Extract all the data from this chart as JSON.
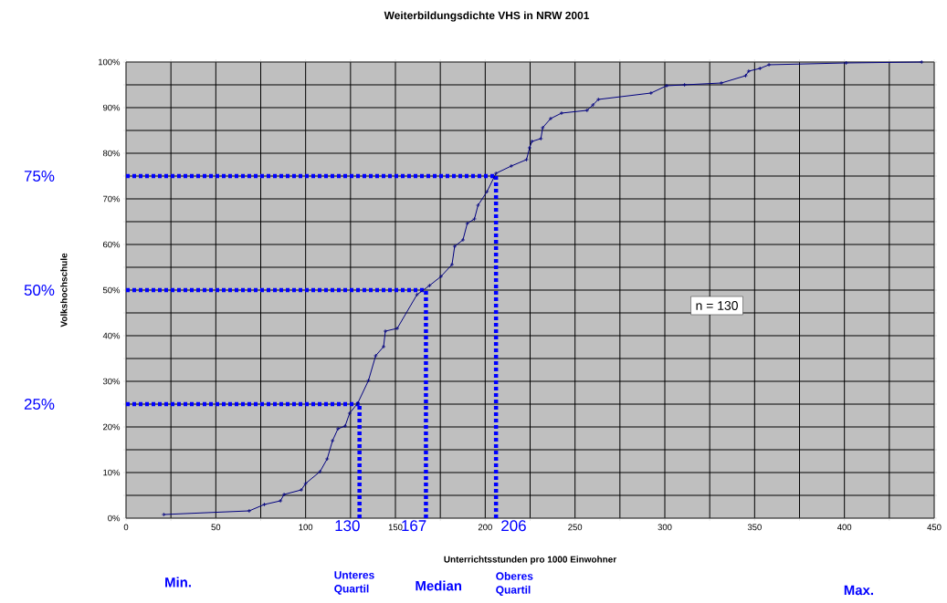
{
  "chart_data": {
    "type": "line",
    "title": "Weiterbildungsdichte VHS in NRW 2001",
    "xlabel": "Unterrichtsstunden pro 1000 Einwohner",
    "ylabel": "Volkshochschule",
    "x": [
      21,
      68.6,
      77,
      86,
      88,
      97.6,
      100,
      108,
      112,
      115,
      118,
      122,
      124.5,
      129,
      135,
      139,
      143.4,
      144.4,
      151,
      162,
      169,
      175.4,
      181.5,
      183,
      187.6,
      190,
      194,
      196,
      201,
      206,
      214.5,
      223,
      224.7,
      226,
      231,
      232,
      236.4,
      242.5,
      256.7,
      260,
      263,
      292.3,
      301,
      311,
      331.5,
      345,
      346.7,
      353,
      358,
      401,
      443
    ],
    "series": [
      {
        "color": "#000080",
        "values": [
          0.8,
          1.6,
          3,
          3.8,
          5.2,
          6.2,
          7.6,
          10.2,
          13,
          17,
          19.6,
          20.2,
          23,
          25.2,
          30.2,
          35.6,
          37.6,
          41,
          41.6,
          49,
          51,
          53,
          55.6,
          59.6,
          61,
          64.6,
          65.6,
          68.6,
          71.6,
          75.6,
          77.2,
          78.6,
          81.2,
          82.6,
          83.2,
          85.6,
          87.6,
          88.8,
          89.4,
          90.6,
          91.8,
          93.2,
          94.8,
          95,
          95.4,
          97,
          98,
          98.6,
          99.4,
          99.8,
          100
        ]
      }
    ],
    "xlim": [
      0,
      450
    ],
    "ylim": [
      0,
      100
    ],
    "xticks": [
      0,
      {
        "value": 25,
        "label": null
      },
      50,
      {
        "value": 75,
        "label": null
      },
      100,
      {
        "value": 125,
        "label": null
      },
      150,
      {
        "value": 175,
        "label": null
      },
      200,
      {
        "value": 225,
        "label": null
      },
      250,
      {
        "value": 275,
        "label": null
      },
      300,
      {
        "value": 325,
        "label": null
      },
      350,
      {
        "value": 375,
        "label": null
      },
      400,
      {
        "value": 425,
        "label": null
      },
      450
    ],
    "yticks": [
      {
        "value": 0,
        "label": "0%"
      },
      {
        "value": 5,
        "label": null
      },
      {
        "value": 10,
        "label": "10%"
      },
      {
        "value": 15,
        "label": null
      },
      {
        "value": 20,
        "label": "20%"
      },
      {
        "value": 25,
        "label": null
      },
      {
        "value": 30,
        "label": "30%"
      },
      {
        "value": 35,
        "label": null
      },
      {
        "value": 40,
        "label": "40%"
      },
      {
        "value": 45,
        "label": null
      },
      {
        "value": 50,
        "label": "50%"
      },
      {
        "value": 55,
        "label": null
      },
      {
        "value": 60,
        "label": "60%"
      },
      {
        "value": 65,
        "label": null
      },
      {
        "value": 70,
        "label": "70%"
      },
      {
        "value": 75,
        "label": null
      },
      {
        "value": 80,
        "label": "80%"
      },
      {
        "value": 85,
        "label": null
      },
      {
        "value": 90,
        "label": "90%"
      },
      {
        "value": 95,
        "label": null
      },
      {
        "value": 100,
        "label": "100%"
      }
    ],
    "ref_lines": [
      {
        "axis": "y",
        "value": 25,
        "label": "25%",
        "color": "#0000ff",
        "line_style": "dotted"
      },
      {
        "axis": "y",
        "value": 50,
        "label": "50%",
        "color": "#0000ff",
        "line_style": "dotted"
      },
      {
        "axis": "y",
        "value": 75,
        "label": "75%",
        "color": "#0000ff",
        "line_style": "dotted"
      },
      {
        "axis": "x",
        "value": 130,
        "label": "130",
        "color": "#0000ff",
        "line_style": "dotted"
      },
      {
        "axis": "x",
        "value": 167,
        "label": "167",
        "color": "#0000ff",
        "line_style": "dotted"
      },
      {
        "axis": "x",
        "value": 206,
        "label": "206",
        "color": "#0000ff",
        "line_style": "dotted"
      }
    ],
    "annotations": [
      "Min.",
      "Unteres Quartil",
      "Median",
      "Oberes Quartil",
      "Max.",
      "n = 130"
    ],
    "grid": true,
    "marker": "cross",
    "line_style": "solid"
  }
}
